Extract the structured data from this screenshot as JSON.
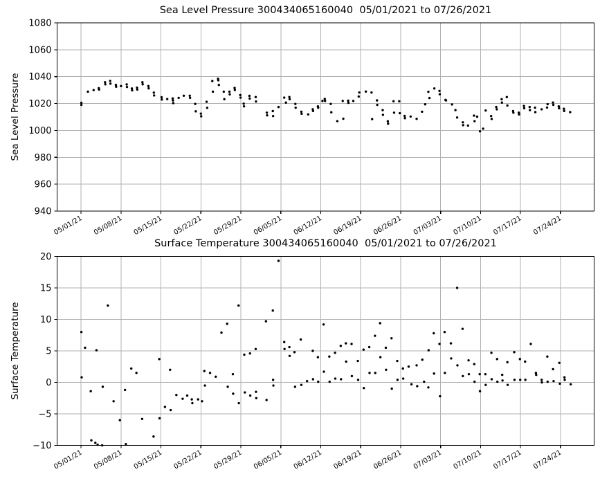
{
  "figure": {
    "background": "#ffffff",
    "text_color": "#000000"
  },
  "chart_data": [
    {
      "type": "scatter",
      "title": "Sea Level Pressure 300434065160040  05/01/2021 to 07/26/2021",
      "ylabel": "Sea Level Pressure",
      "xlabel": "",
      "grid": true,
      "legend": "none",
      "marker_color": "#000000",
      "grid_color": "#b0b0b0",
      "ylim": [
        940,
        1080
      ],
      "yticks": [
        940,
        960,
        980,
        1000,
        1020,
        1040,
        1060,
        1080
      ],
      "ytick_labels": [
        "940",
        "960",
        "980",
        "1000",
        "1020",
        "1040",
        "1060",
        "1080"
      ],
      "xlim_days": [
        -4.2,
        89.9
      ],
      "xtick_days": [
        0,
        7,
        14,
        21,
        28,
        35,
        42,
        49,
        56,
        63,
        70,
        77,
        84
      ],
      "xtick_labels": [
        "05/01/21",
        "05/08/21",
        "05/15/21",
        "05/22/21",
        "05/29/21",
        "06/05/21",
        "06/12/21",
        "06/19/21",
        "06/26/21",
        "07/03/21",
        "07/10/21",
        "07/17/21",
        "07/24/21"
      ],
      "points": [
        [
          0.05,
          1020.5
        ],
        [
          0.05,
          1019.0
        ],
        [
          1.2,
          1028.8
        ],
        [
          2.2,
          1030.0
        ],
        [
          3.1,
          1031.4
        ],
        [
          3.15,
          1030.4
        ],
        [
          4.2,
          1035.8
        ],
        [
          4.25,
          1034.3
        ],
        [
          5.1,
          1036.8
        ],
        [
          5.15,
          1034.8
        ],
        [
          6.1,
          1033.8
        ],
        [
          6.15,
          1032.5
        ],
        [
          7.0,
          1033.0
        ],
        [
          8.0,
          1034.2
        ],
        [
          8.05,
          1032.3
        ],
        [
          8.9,
          1031.2
        ],
        [
          8.95,
          1029.8
        ],
        [
          9.8,
          1031.8
        ],
        [
          9.85,
          1030.4
        ],
        [
          10.75,
          1035.8
        ],
        [
          10.8,
          1034.3
        ],
        [
          11.8,
          1033.0
        ],
        [
          11.85,
          1031.3
        ],
        [
          12.75,
          1028.1
        ],
        [
          12.8,
          1026.0
        ],
        [
          14.1,
          1024.7
        ],
        [
          14.15,
          1023.0
        ],
        [
          15.1,
          1023.3
        ],
        [
          16.05,
          1023.8
        ],
        [
          16.1,
          1022.3
        ],
        [
          16.15,
          1020.3
        ],
        [
          17.1,
          1024.2
        ],
        [
          18.0,
          1025.8
        ],
        [
          19.05,
          1025.8
        ],
        [
          19.1,
          1024.2
        ],
        [
          20.0,
          1019.7
        ],
        [
          20.1,
          1014.2
        ],
        [
          21.0,
          1012.5
        ],
        [
          21.05,
          1010.5
        ],
        [
          22.0,
          1021.3
        ],
        [
          22.1,
          1016.8
        ],
        [
          23.0,
          1036.7
        ],
        [
          23.1,
          1028.8
        ],
        [
          24.0,
          1038.4
        ],
        [
          24.05,
          1037.3
        ],
        [
          24.15,
          1033.8
        ],
        [
          25.0,
          1028.8
        ],
        [
          25.1,
          1023.2
        ],
        [
          26.0,
          1028.8
        ],
        [
          26.05,
          1026.8
        ],
        [
          26.9,
          1031.6
        ],
        [
          26.95,
          1030.1
        ],
        [
          27.9,
          1026.3
        ],
        [
          27.95,
          1024.4
        ],
        [
          28.5,
          1019.9
        ],
        [
          28.55,
          1017.9
        ],
        [
          29.5,
          1025.7
        ],
        [
          29.55,
          1023.7
        ],
        [
          30.6,
          1024.8
        ],
        [
          30.65,
          1021.5
        ],
        [
          32.55,
          1013.2
        ],
        [
          32.6,
          1011.2
        ],
        [
          33.6,
          1014.4
        ],
        [
          33.65,
          1010.7
        ],
        [
          34.6,
          1017.4
        ],
        [
          35.6,
          1024.4
        ],
        [
          35.9,
          1020.7
        ],
        [
          36.5,
          1024.8
        ],
        [
          36.55,
          1023.2
        ],
        [
          37.55,
          1019.7
        ],
        [
          37.6,
          1016.9
        ],
        [
          38.6,
          1013.9
        ],
        [
          38.65,
          1012.4
        ],
        [
          39.8,
          1011.9
        ],
        [
          40.6,
          1015.7
        ],
        [
          40.65,
          1014.5
        ],
        [
          41.5,
          1017.9
        ],
        [
          41.55,
          1016.9
        ],
        [
          42.3,
          1021.9
        ],
        [
          42.7,
          1023.4
        ],
        [
          42.75,
          1021.9
        ],
        [
          43.75,
          1019.7
        ],
        [
          43.85,
          1013.5
        ],
        [
          44.9,
          1006.9
        ],
        [
          45.85,
          1021.9
        ],
        [
          45.95,
          1008.7
        ],
        [
          46.8,
          1022.1
        ],
        [
          46.85,
          1020.5
        ],
        [
          47.7,
          1021.9
        ],
        [
          48.65,
          1025.2
        ],
        [
          48.75,
          1028.2
        ],
        [
          49.9,
          1028.9
        ],
        [
          50.9,
          1028.2
        ],
        [
          51.0,
          1008.4
        ],
        [
          51.85,
          1022.3
        ],
        [
          51.9,
          1019.0
        ],
        [
          52.85,
          1015.1
        ],
        [
          52.9,
          1011.6
        ],
        [
          53.75,
          1006.8
        ],
        [
          53.8,
          1005.0
        ],
        [
          54.75,
          1021.7
        ],
        [
          54.85,
          1013.2
        ],
        [
          55.75,
          1021.7
        ],
        [
          55.85,
          1012.8
        ],
        [
          56.7,
          1010.8
        ],
        [
          56.75,
          1009.1
        ],
        [
          57.75,
          1010.3
        ],
        [
          58.8,
          1008.6
        ],
        [
          59.75,
          1013.9
        ],
        [
          60.3,
          1019.4
        ],
        [
          60.85,
          1028.7
        ],
        [
          61.05,
          1024.1
        ],
        [
          61.9,
          1031.2
        ],
        [
          62.8,
          1029.4
        ],
        [
          62.85,
          1026.9
        ],
        [
          63.85,
          1022.7
        ],
        [
          63.95,
          1022.3
        ],
        [
          65.0,
          1019.3
        ],
        [
          65.6,
          1015.1
        ],
        [
          65.9,
          1009.6
        ],
        [
          66.9,
          1006.0
        ],
        [
          66.95,
          1003.9
        ],
        [
          67.8,
          1003.6
        ],
        [
          68.85,
          1011.0
        ],
        [
          68.95,
          1006.9
        ],
        [
          69.4,
          1010.2
        ],
        [
          69.9,
          999.3
        ],
        [
          70.45,
          1001.3
        ],
        [
          70.9,
          1014.8
        ],
        [
          71.85,
          1010.7
        ],
        [
          71.95,
          1008.5
        ],
        [
          72.75,
          1017.4
        ],
        [
          72.85,
          1015.7
        ],
        [
          73.7,
          1023.2
        ],
        [
          73.75,
          1020.7
        ],
        [
          74.6,
          1024.8
        ],
        [
          74.7,
          1018.5
        ],
        [
          75.7,
          1014.4
        ],
        [
          75.75,
          1013.2
        ],
        [
          76.7,
          1013.2
        ],
        [
          76.75,
          1011.9
        ],
        [
          77.6,
          1018.2
        ],
        [
          77.65,
          1016.5
        ],
        [
          78.6,
          1017.4
        ],
        [
          78.65,
          1015.1
        ],
        [
          79.55,
          1016.9
        ],
        [
          79.6,
          1013.6
        ],
        [
          80.7,
          1015.7
        ],
        [
          81.65,
          1017.0
        ],
        [
          81.75,
          1019.5
        ],
        [
          82.7,
          1020.7
        ],
        [
          82.75,
          1019.0
        ],
        [
          83.7,
          1017.9
        ],
        [
          83.75,
          1016.5
        ],
        [
          84.6,
          1016.1
        ],
        [
          84.65,
          1014.5
        ],
        [
          85.7,
          1013.6
        ]
      ]
    },
    {
      "type": "scatter",
      "title": "Surface Temperature 300434065160040  05/01/2021 to 07/26/2021",
      "ylabel": "Surface Temperature",
      "xlabel": "",
      "grid": true,
      "legend": "none",
      "marker_color": "#000000",
      "grid_color": "#b0b0b0",
      "ylim": [
        -10,
        20
      ],
      "yticks": [
        -10,
        -5,
        0,
        5,
        10,
        15,
        20
      ],
      "ytick_labels": [
        "−10",
        "−5",
        "0",
        "5",
        "10",
        "15",
        "20"
      ],
      "xlim_days": [
        -4.2,
        89.9
      ],
      "xtick_days": [
        0,
        7,
        14,
        21,
        28,
        35,
        42,
        49,
        56,
        63,
        70,
        77,
        84
      ],
      "xtick_labels": [
        "05/01/21",
        "05/08/21",
        "05/15/21",
        "05/22/21",
        "05/29/21",
        "06/05/21",
        "06/12/21",
        "06/19/21",
        "06/26/21",
        "07/03/21",
        "07/10/21",
        "07/17/21",
        "07/24/21"
      ],
      "points": [
        [
          0.05,
          8.0
        ],
        [
          0.1,
          0.8
        ],
        [
          0.7,
          5.5
        ],
        [
          1.7,
          -1.4
        ],
        [
          1.8,
          -9.2
        ],
        [
          2.5,
          -9.6
        ],
        [
          2.7,
          5.1
        ],
        [
          2.9,
          -9.9
        ],
        [
          3.7,
          -10.0
        ],
        [
          3.8,
          -0.7
        ],
        [
          4.7,
          12.2
        ],
        [
          5.7,
          -3.0
        ],
        [
          6.8,
          -6.0
        ],
        [
          7.7,
          -1.2
        ],
        [
          7.85,
          -9.8
        ],
        [
          8.8,
          2.2
        ],
        [
          9.7,
          1.5
        ],
        [
          10.7,
          -5.8
        ],
        [
          12.7,
          -8.6
        ],
        [
          13.7,
          3.7
        ],
        [
          13.75,
          -5.7
        ],
        [
          14.7,
          -3.9
        ],
        [
          15.6,
          2.0
        ],
        [
          15.7,
          -4.4
        ],
        [
          16.7,
          -2.0
        ],
        [
          17.8,
          -2.6
        ],
        [
          18.6,
          -2.1
        ],
        [
          19.4,
          -2.7
        ],
        [
          19.5,
          -3.3
        ],
        [
          20.5,
          -2.7
        ],
        [
          21.2,
          -3.0
        ],
        [
          21.6,
          1.8
        ],
        [
          21.7,
          -0.5
        ],
        [
          22.6,
          1.5
        ],
        [
          23.6,
          0.9
        ],
        [
          24.6,
          7.9
        ],
        [
          25.6,
          9.3
        ],
        [
          25.7,
          -0.7
        ],
        [
          26.6,
          1.3
        ],
        [
          26.65,
          -1.8
        ],
        [
          27.6,
          12.2
        ],
        [
          27.65,
          -3.3
        ],
        [
          28.6,
          4.4
        ],
        [
          28.7,
          -1.6
        ],
        [
          29.6,
          4.6
        ],
        [
          29.65,
          -2.1
        ],
        [
          30.6,
          5.3
        ],
        [
          30.65,
          -1.5
        ],
        [
          30.7,
          -2.5
        ],
        [
          32.4,
          9.7
        ],
        [
          32.5,
          -2.8
        ],
        [
          33.6,
          11.4
        ],
        [
          33.65,
          0.4
        ],
        [
          33.7,
          -0.5
        ],
        [
          34.6,
          19.3
        ],
        [
          35.6,
          6.4
        ],
        [
          35.65,
          5.3
        ],
        [
          36.5,
          5.6
        ],
        [
          36.55,
          4.2
        ],
        [
          37.4,
          4.8
        ],
        [
          37.5,
          -0.7
        ],
        [
          38.5,
          6.8
        ],
        [
          38.6,
          -0.4
        ],
        [
          39.6,
          0.2
        ],
        [
          40.6,
          5.0
        ],
        [
          40.65,
          0.5
        ],
        [
          41.5,
          4.0
        ],
        [
          41.55,
          0.1
        ],
        [
          42.5,
          9.2
        ],
        [
          42.55,
          1.7
        ],
        [
          43.5,
          4.1
        ],
        [
          43.55,
          0.1
        ],
        [
          44.5,
          4.7
        ],
        [
          44.55,
          0.6
        ],
        [
          45.5,
          5.8
        ],
        [
          45.55,
          0.5
        ],
        [
          46.4,
          6.2
        ],
        [
          46.45,
          3.3
        ],
        [
          47.4,
          6.1
        ],
        [
          47.45,
          1.0
        ],
        [
          48.5,
          3.4
        ],
        [
          48.55,
          0.4
        ],
        [
          49.5,
          5.2
        ],
        [
          49.55,
          -0.9
        ],
        [
          50.5,
          5.6
        ],
        [
          50.55,
          1.5
        ],
        [
          51.5,
          7.4
        ],
        [
          51.55,
          1.5
        ],
        [
          52.4,
          9.4
        ],
        [
          52.45,
          4.0
        ],
        [
          53.4,
          5.5
        ],
        [
          53.45,
          2.0
        ],
        [
          54.4,
          7.0
        ],
        [
          54.45,
          -1.0
        ],
        [
          55.4,
          3.4
        ],
        [
          55.45,
          0.4
        ],
        [
          56.4,
          2.2
        ],
        [
          56.45,
          0.6
        ],
        [
          57.4,
          2.5
        ],
        [
          57.9,
          -0.3
        ],
        [
          58.8,
          2.7
        ],
        [
          58.9,
          -0.6
        ],
        [
          59.8,
          3.6
        ],
        [
          60.1,
          0.1
        ],
        [
          60.85,
          -0.8
        ],
        [
          60.9,
          5.1
        ],
        [
          61.8,
          7.8
        ],
        [
          61.85,
          1.4
        ],
        [
          62.8,
          6.1
        ],
        [
          62.9,
          -2.2
        ],
        [
          63.7,
          8.0
        ],
        [
          63.75,
          1.5
        ],
        [
          64.8,
          6.2
        ],
        [
          64.85,
          3.8
        ],
        [
          65.9,
          15.0
        ],
        [
          65.95,
          2.7
        ],
        [
          66.85,
          8.5
        ],
        [
          66.9,
          1.0
        ],
        [
          67.9,
          3.5
        ],
        [
          67.95,
          1.3
        ],
        [
          68.9,
          2.9
        ],
        [
          68.95,
          0.1
        ],
        [
          69.85,
          1.3
        ],
        [
          69.9,
          -1.4
        ],
        [
          70.85,
          1.3
        ],
        [
          70.9,
          -0.4
        ],
        [
          71.9,
          4.7
        ],
        [
          71.95,
          0.5
        ],
        [
          72.9,
          3.7
        ],
        [
          72.95,
          0.1
        ],
        [
          73.8,
          1.2
        ],
        [
          73.85,
          0.3
        ],
        [
          74.7,
          3.2
        ],
        [
          74.75,
          -0.4
        ],
        [
          75.9,
          4.8
        ],
        [
          75.95,
          0.4
        ],
        [
          76.9,
          3.7
        ],
        [
          76.95,
          0.4
        ],
        [
          77.8,
          3.3
        ],
        [
          77.85,
          0.4
        ],
        [
          78.8,
          6.1
        ],
        [
          79.7,
          1.5
        ],
        [
          79.75,
          1.2
        ],
        [
          80.7,
          0.4
        ],
        [
          80.75,
          0.0
        ],
        [
          81.7,
          4.1
        ],
        [
          81.75,
          0.1
        ],
        [
          82.7,
          2.1
        ],
        [
          82.8,
          0.2
        ],
        [
          83.8,
          3.1
        ],
        [
          83.9,
          -0.2
        ],
        [
          84.7,
          0.8
        ],
        [
          84.75,
          0.4
        ],
        [
          85.8,
          -0.3
        ]
      ]
    }
  ]
}
